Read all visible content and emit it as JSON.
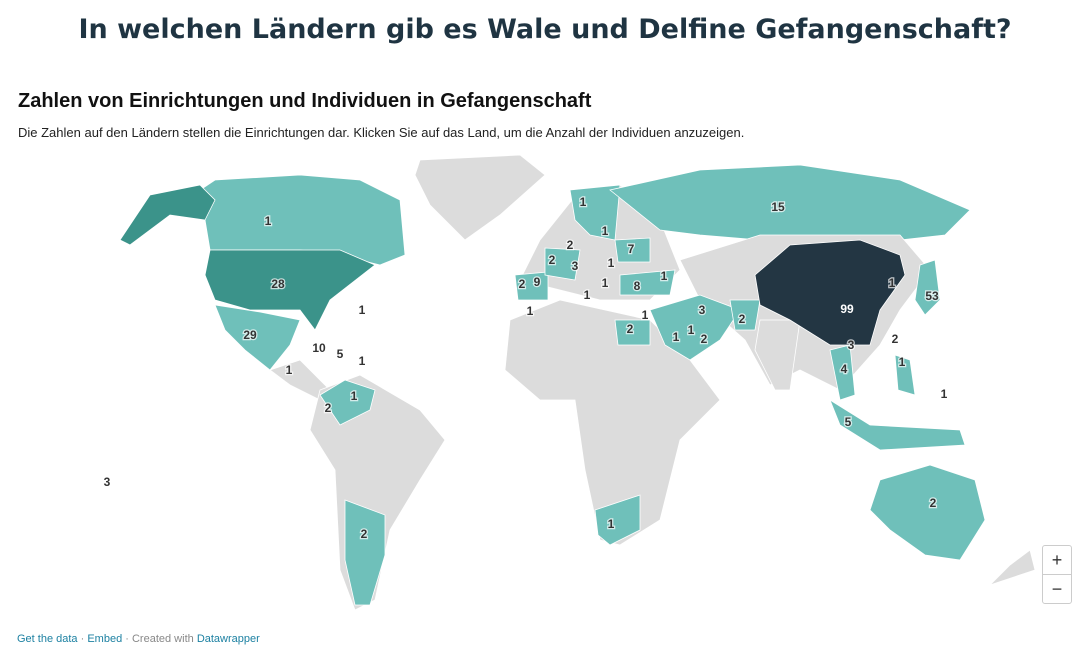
{
  "header": {
    "title": "In welchen Ländern gib es Wale und Delfine Gefangenschaft?"
  },
  "map": {
    "subtitle": "Zahlen von Einrichtungen und Individuen in Gefangenschaft",
    "description": "Die Zahlen auf den Ländern stellen die Einrichtungen dar. Klicken Sie auf das Land, um die Anzahl der Individuen anzuzeigen.",
    "labels": [
      1,
      15,
      1,
      1,
      2,
      7,
      2,
      1,
      3,
      2,
      9,
      1,
      8,
      1,
      1,
      1,
      28,
      1,
      29,
      10,
      5,
      1,
      1,
      1,
      2,
      3,
      2,
      1,
      2,
      1,
      3,
      1,
      1,
      2,
      2,
      99,
      1,
      53,
      2,
      3,
      4,
      1,
      1,
      5,
      2
    ],
    "zoom_in": "+",
    "zoom_out": "−"
  },
  "footer": {
    "get_data": "Get the data",
    "separator": "·",
    "embed": "Embed",
    "created_with": "· Created with",
    "tool": "Datawrapper"
  }
}
